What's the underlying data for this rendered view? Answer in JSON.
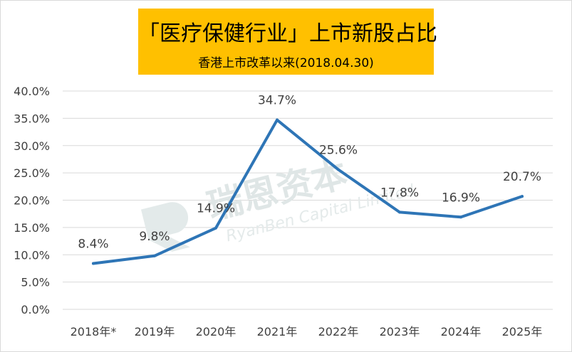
{
  "chart_data": {
    "type": "line",
    "title": "「医疗保健行业」上市新股占比",
    "subtitle": "香港上市改革以来(2018.04.30)",
    "categories": [
      "2018年*",
      "2019年",
      "2020年",
      "2021年",
      "2022年",
      "2023年",
      "2024年",
      "2025年"
    ],
    "values": [
      8.4,
      9.8,
      14.9,
      34.7,
      25.6,
      17.8,
      16.9,
      20.7
    ],
    "data_labels": [
      "8.4%",
      "9.8%",
      "14.9%",
      "34.7%",
      "25.6%",
      "17.8%",
      "16.9%",
      "20.7%"
    ],
    "y_ticks": [
      "0.0%",
      "5.0%",
      "10.0%",
      "15.0%",
      "20.0%",
      "25.0%",
      "30.0%",
      "35.0%",
      "40.0%"
    ],
    "ylim": [
      0,
      40
    ],
    "grid": true,
    "legend": "none",
    "line_color": "#2e75b6",
    "title_bg": "#ffc000",
    "watermark": {
      "name": "瑞恩资本",
      "english": "RyanBen Capital Limited"
    }
  }
}
